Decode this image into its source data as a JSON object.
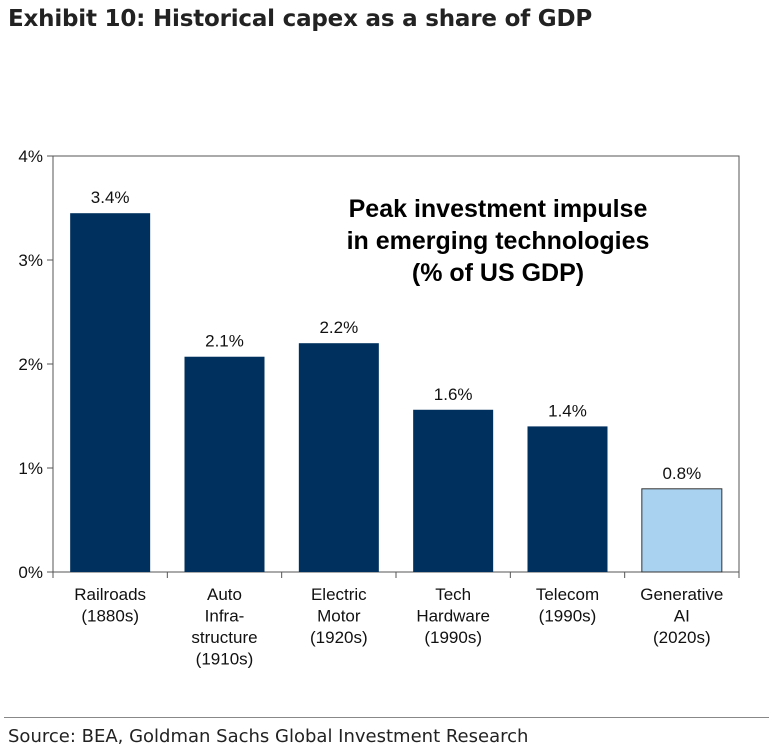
{
  "title": "Exhibit 10: Historical capex as a share of GDP",
  "source": "Source: BEA, Goldman Sachs Global Investment Research",
  "colors": {
    "primary_bar": "#00305e",
    "highlight_bar": "#a9d1f0",
    "highlight_bar_stroke": "#333333",
    "axis": "#555555"
  },
  "chart_data": {
    "type": "bar",
    "annotation": [
      "Peak investment impulse",
      "in emerging technologies",
      "(% of US GDP)"
    ],
    "categories": [
      [
        "Railroads",
        "(1880s)"
      ],
      [
        "Auto",
        "Infra-",
        "structure",
        "(1910s)"
      ],
      [
        "Electric",
        "Motor",
        "(1920s)"
      ],
      [
        "Tech",
        "Hardware",
        "(1990s)"
      ],
      [
        "Telecom",
        "(1990s)"
      ],
      [
        "Generative",
        "AI",
        "(2020s)"
      ]
    ],
    "values": [
      3.45,
      2.07,
      2.2,
      1.56,
      1.4,
      0.8
    ],
    "data_labels": [
      "3.4%",
      "2.1%",
      "2.2%",
      "1.6%",
      "1.4%",
      "0.8%"
    ],
    "highlight_index": 5,
    "ylim": [
      0,
      4
    ],
    "yticks": [
      0,
      1,
      2,
      3,
      4
    ],
    "ytick_labels": [
      "0%",
      "1%",
      "2%",
      "3%",
      "4%"
    ],
    "xlabel": "",
    "ylabel": "",
    "grid": false,
    "legend": "none"
  }
}
